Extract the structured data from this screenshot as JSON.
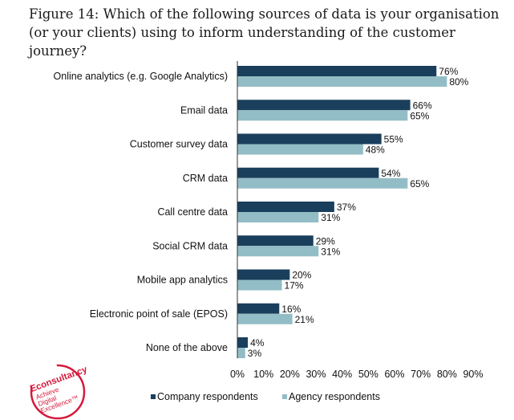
{
  "title": "Figure 14: Which of the following sources of data is your organisation (or your clients) using to inform understanding of the customer journey?",
  "colors": {
    "company": "#1a3f5c",
    "agency": "#93bdc6",
    "brand": "#d61a3c"
  },
  "logo": {
    "brand": "Econsultancy",
    "tagline_1": "Achieve",
    "tagline_2": "Digital",
    "tagline_3": "Excellence™"
  },
  "chart_data": {
    "type": "bar",
    "orientation": "horizontal",
    "title": "Figure 14: Which of the following sources of data is your organisation (or your clients) using to inform understanding of the customer journey?",
    "categories": [
      "Online analytics (e.g. Google Analytics)",
      "Email data",
      "Customer survey data",
      "CRM data",
      "Call centre data",
      "Social CRM data",
      "Mobile app analytics",
      "Electronic point of sale (EPOS)",
      "None of the above"
    ],
    "series": [
      {
        "name": "Company respondents",
        "values": [
          76,
          66,
          55,
          54,
          37,
          29,
          20,
          16,
          4
        ]
      },
      {
        "name": "Agency respondents",
        "values": [
          80,
          65,
          48,
          65,
          31,
          31,
          17,
          21,
          3
        ]
      }
    ],
    "xlim": [
      0,
      90
    ],
    "xticks": [
      "0%",
      "10%",
      "20%",
      "30%",
      "40%",
      "50%",
      "60%",
      "70%",
      "80%",
      "90%"
    ],
    "value_suffix": "%",
    "grid": false,
    "legend_position": "bottom"
  }
}
